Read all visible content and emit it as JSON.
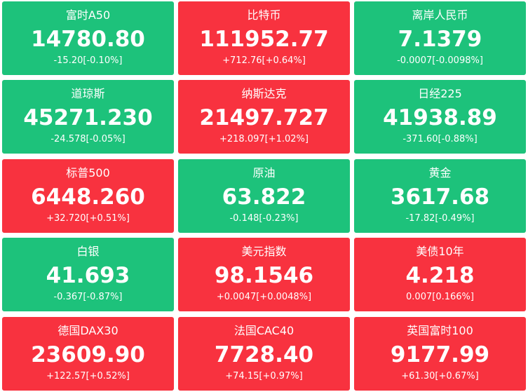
{
  "colors": {
    "up": "#f8323f",
    "down": "#1dc27b",
    "text": "#ffffff"
  },
  "tiles": [
    {
      "name": "富时A50",
      "price": "14780.80",
      "change": "-15.20[-0.10%]",
      "trend": "down"
    },
    {
      "name": "比特币",
      "price": "111952.77",
      "change": "+712.76[+0.64%]",
      "trend": "up"
    },
    {
      "name": "离岸人民币",
      "price": "7.1379",
      "change": "-0.0007[-0.0098%]",
      "trend": "down"
    },
    {
      "name": "道琼斯",
      "price": "45271.230",
      "change": "-24.578[-0.05%]",
      "trend": "down"
    },
    {
      "name": "纳斯达克",
      "price": "21497.727",
      "change": "+218.097[+1.02%]",
      "trend": "up"
    },
    {
      "name": "日经225",
      "price": "41938.89",
      "change": "-371.60[-0.88%]",
      "trend": "down"
    },
    {
      "name": "标普500",
      "price": "6448.260",
      "change": "+32.720[+0.51%]",
      "trend": "up"
    },
    {
      "name": "原油",
      "price": "63.822",
      "change": "-0.148[-0.23%]",
      "trend": "down"
    },
    {
      "name": "黄金",
      "price": "3617.68",
      "change": "-17.82[-0.49%]",
      "trend": "down"
    },
    {
      "name": "白银",
      "price": "41.693",
      "change": "-0.367[-0.87%]",
      "trend": "down"
    },
    {
      "name": "美元指数",
      "price": "98.1546",
      "change": "+0.0047[+0.0048%]",
      "trend": "up"
    },
    {
      "name": "美债10年",
      "price": "4.218",
      "change": "0.007[0.166%]",
      "trend": "up"
    },
    {
      "name": "德国DAX30",
      "price": "23609.90",
      "change": "+122.57[+0.52%]",
      "trend": "up"
    },
    {
      "name": "法国CAC40",
      "price": "7728.40",
      "change": "+74.15[+0.97%]",
      "trend": "up"
    },
    {
      "name": "英国富时100",
      "price": "9177.99",
      "change": "+61.30[+0.67%]",
      "trend": "up"
    }
  ]
}
